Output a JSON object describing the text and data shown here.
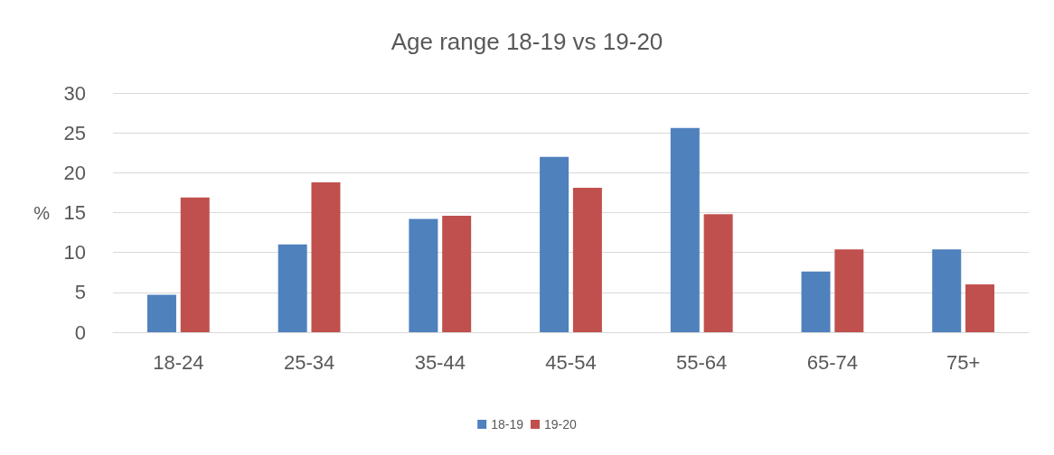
{
  "chart_data": {
    "type": "bar",
    "title": "Age range 18-19 vs 19-20",
    "ylabel": "%",
    "categories": [
      "18-24",
      "25-34",
      "35-44",
      "45-54",
      "55-64",
      "65-74",
      "75+"
    ],
    "series": [
      {
        "name": "18-19",
        "color": "#4f81bd",
        "values": [
          4.7,
          11.0,
          14.2,
          22.0,
          25.6,
          7.6,
          10.4
        ]
      },
      {
        "name": "19-20",
        "color": "#c0504d",
        "values": [
          16.9,
          18.8,
          14.6,
          18.1,
          14.8,
          10.4,
          6.0
        ]
      }
    ],
    "ylim": [
      0,
      30
    ],
    "yticks": [
      0,
      5,
      10,
      15,
      20,
      25,
      30
    ],
    "grid": "y",
    "legend": "bottom"
  }
}
